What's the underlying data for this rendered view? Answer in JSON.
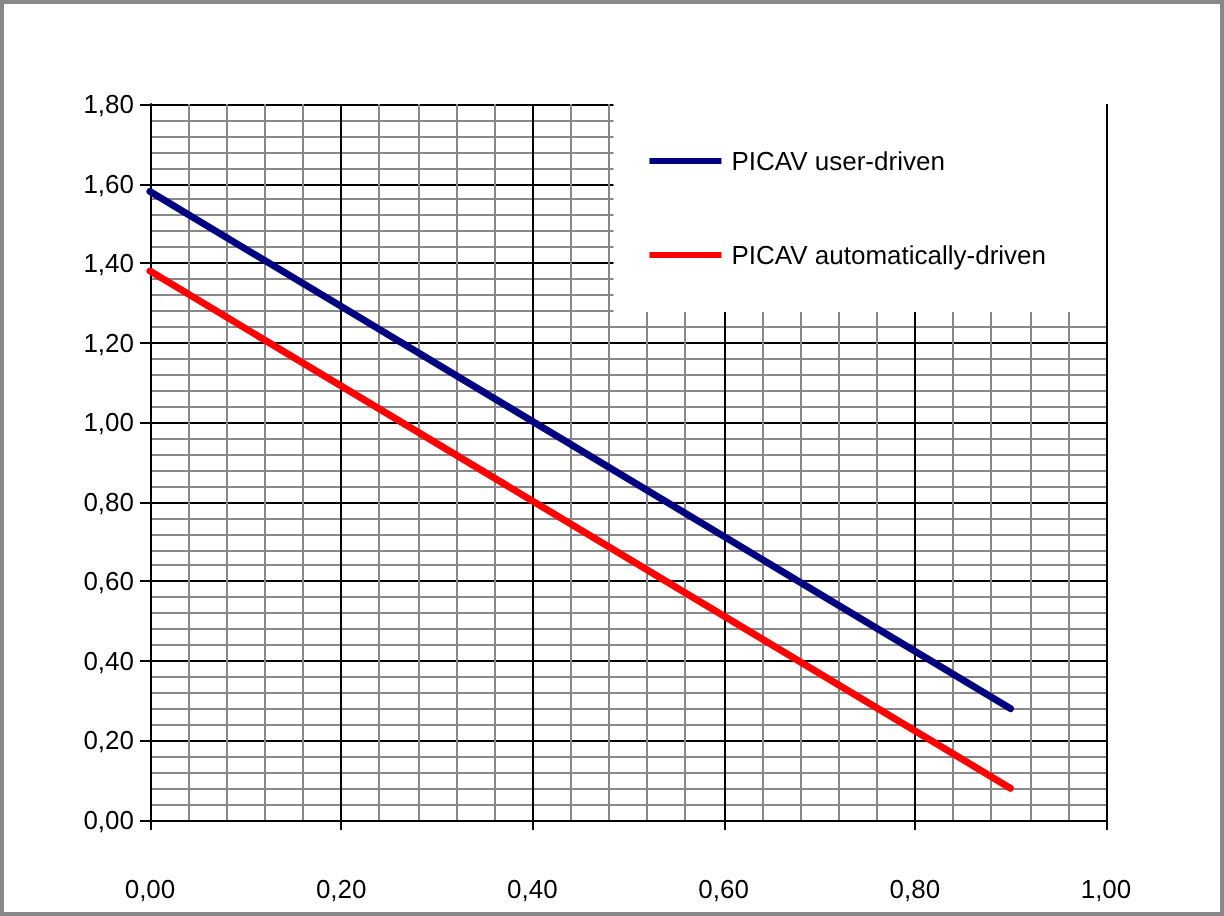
{
  "chart_data": {
    "type": "line",
    "x": [
      0,
      0.9
    ],
    "series": [
      {
        "name": "PICAV user-driven",
        "color": "#000080",
        "values": [
          1.58,
          0.28
        ]
      },
      {
        "name": "PICAV automatically-driven",
        "color": "#ff0000",
        "values": [
          1.38,
          0.08
        ]
      }
    ],
    "xlim": [
      0,
      1
    ],
    "ylim": [
      0,
      1.8
    ],
    "xticks": [
      {
        "value": 0,
        "label": "0,00"
      },
      {
        "value": 0.2,
        "label": "0,20"
      },
      {
        "value": 0.4,
        "label": "0,40"
      },
      {
        "value": 0.6,
        "label": "0,60"
      },
      {
        "value": 0.8,
        "label": "0,80"
      },
      {
        "value": 1,
        "label": "1,00"
      }
    ],
    "yticks": [
      {
        "value": 0,
        "label": "0,00"
      },
      {
        "value": 0.2,
        "label": "0,20"
      },
      {
        "value": 0.4,
        "label": "0,40"
      },
      {
        "value": 0.6,
        "label": "0,60"
      },
      {
        "value": 0.8,
        "label": "0,80"
      },
      {
        "value": 1,
        "label": "1,00"
      },
      {
        "value": 1.2,
        "label": "1,20"
      },
      {
        "value": 1.4,
        "label": "1,40"
      },
      {
        "value": 1.6,
        "label": "1,60"
      },
      {
        "value": 1.8,
        "label": "1,80"
      }
    ],
    "grid": true,
    "legend": "top right",
    "marker": "none",
    "line_style": "solid"
  }
}
